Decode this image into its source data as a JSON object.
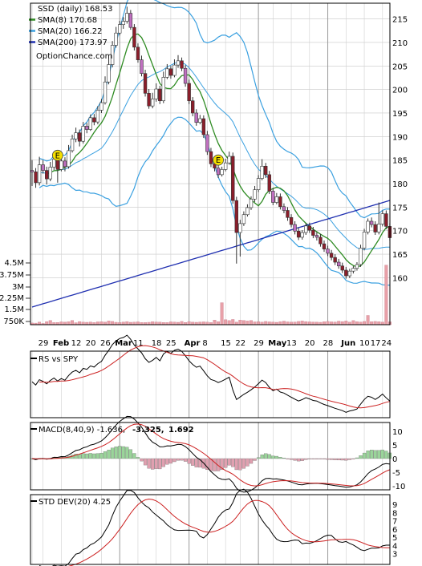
{
  "chart_data": [
    {
      "type": "candlestick",
      "panel": "price",
      "legend": [
        {
          "label": "SSD (daily) 168.53",
          "color": "#000000"
        },
        {
          "label": "SMA(8) 170.68",
          "color": "#2e8b22"
        },
        {
          "label": "SMA(20) 166.22",
          "color": "#3aa0e0"
        },
        {
          "label": "SMA(200) 173.97",
          "color": "#1f2fb0"
        }
      ],
      "source": "OptionChance.com",
      "x_ticks": [
        "29",
        "Feb",
        "12",
        "20",
        "26",
        "Mar",
        "11",
        "18",
        "25",
        "Apr",
        "8",
        "15",
        "22",
        "29",
        "May",
        "13",
        "20",
        "28",
        "Jun",
        "10",
        "17",
        "24"
      ],
      "y_ticks": [
        160,
        165,
        170,
        175,
        180,
        185,
        190,
        195,
        200,
        205,
        210,
        215
      ],
      "ylim": [
        157,
        218
      ],
      "close": [
        182.5,
        180.2,
        184.0,
        182.8,
        181.0,
        183.5,
        185.2,
        183.0,
        184.8,
        183.6,
        187.0,
        189.5,
        190.8,
        189.0,
        192.2,
        191.5,
        194.0,
        193.1,
        195.6,
        197.2,
        201.6,
        205.3,
        209.4,
        212.0,
        213.8,
        214.5,
        216.2,
        213.2,
        209.0,
        206.3,
        203.4,
        199.2,
        196.5,
        198.0,
        200.1,
        197.6,
        202.6,
        204.4,
        203.0,
        205.2,
        206.1,
        204.5,
        201.3,
        197.6,
        195.0,
        193.0,
        193.8,
        190.4,
        186.8,
        184.2,
        183.3,
        181.9,
        183.0,
        184.4,
        185.8,
        176.4,
        169.6,
        171.5,
        173.4,
        174.9,
        176.7,
        178.7,
        181.1,
        183.7,
        181.9,
        178.4,
        176.0,
        177.2,
        175.1,
        174.3,
        172.8,
        171.3,
        169.9,
        168.6,
        169.6,
        171.0,
        170.1,
        169.0,
        168.6,
        167.2,
        166.1,
        165.2,
        164.3,
        163.3,
        162.5,
        161.6,
        160.4,
        161.4,
        162.0,
        162.8,
        166.3,
        169.7,
        172.0,
        171.3,
        169.7,
        171.4,
        173.6,
        170.9,
        168.5
      ],
      "ohlc_bars": [
        {
          "x": 0,
          "o": 182.8,
          "h": 185.0,
          "l": 179.5,
          "c": 182.5
        },
        {
          "x": 1,
          "o": 182.5,
          "h": 183.3,
          "l": 179.1,
          "c": 180.2
        },
        {
          "x": 2,
          "o": 180.2,
          "h": 185.7,
          "l": 179.6,
          "c": 184.0
        },
        {
          "x": 3,
          "o": 184.0,
          "h": 185.0,
          "l": 182.1,
          "c": 182.8
        },
        {
          "x": 4,
          "o": 182.8,
          "h": 183.6,
          "l": 179.8,
          "c": 181.0
        },
        {
          "x": 5,
          "o": 181.0,
          "h": 184.6,
          "l": 180.5,
          "c": 183.5
        },
        {
          "x": 6,
          "o": 183.5,
          "h": 186.3,
          "l": 182.9,
          "c": 185.2
        },
        {
          "x": 7,
          "o": 185.2,
          "h": 186.1,
          "l": 180.2,
          "c": 183.0
        },
        {
          "x": 8,
          "o": 183.0,
          "h": 185.8,
          "l": 182.6,
          "c": 184.8
        },
        {
          "x": 9,
          "o": 184.8,
          "h": 185.6,
          "l": 182.6,
          "c": 183.6
        },
        {
          "x": 10,
          "o": 183.6,
          "h": 188.2,
          "l": 183.2,
          "c": 187.0
        },
        {
          "x": 11,
          "o": 187.0,
          "h": 190.4,
          "l": 186.6,
          "c": 189.5
        },
        {
          "x": 12,
          "o": 189.5,
          "h": 191.9,
          "l": 188.8,
          "c": 190.8
        },
        {
          "x": 13,
          "o": 190.8,
          "h": 191.5,
          "l": 187.9,
          "c": 189.0
        },
        {
          "x": 14,
          "o": 189.0,
          "h": 193.1,
          "l": 188.5,
          "c": 192.2
        },
        {
          "x": 15,
          "o": 192.2,
          "h": 192.9,
          "l": 190.7,
          "c": 191.5
        },
        {
          "x": 16,
          "o": 191.5,
          "h": 194.7,
          "l": 191.2,
          "c": 194.0
        },
        {
          "x": 17,
          "o": 194.0,
          "h": 194.8,
          "l": 192.4,
          "c": 193.1
        },
        {
          "x": 18,
          "o": 193.1,
          "h": 196.5,
          "l": 192.6,
          "c": 195.6
        },
        {
          "x": 19,
          "o": 195.6,
          "h": 198.0,
          "l": 195.0,
          "c": 197.2
        },
        {
          "x": 20,
          "o": 197.2,
          "h": 202.8,
          "l": 196.8,
          "c": 201.6
        },
        {
          "x": 21,
          "o": 201.6,
          "h": 206.6,
          "l": 201.1,
          "c": 205.3
        },
        {
          "x": 22,
          "o": 205.3,
          "h": 210.3,
          "l": 204.7,
          "c": 209.4
        },
        {
          "x": 23,
          "o": 209.4,
          "h": 213.3,
          "l": 208.9,
          "c": 212.0
        },
        {
          "x": 24,
          "o": 212.0,
          "h": 214.6,
          "l": 211.5,
          "c": 213.8
        },
        {
          "x": 25,
          "o": 213.8,
          "h": 215.4,
          "l": 212.9,
          "c": 214.5
        },
        {
          "x": 26,
          "o": 214.5,
          "h": 217.6,
          "l": 214.0,
          "c": 216.2
        },
        {
          "x": 27,
          "o": 216.2,
          "h": 216.9,
          "l": 212.7,
          "c": 213.2
        },
        {
          "x": 28,
          "o": 213.2,
          "h": 213.9,
          "l": 208.3,
          "c": 209.0
        },
        {
          "x": 29,
          "o": 209.0,
          "h": 209.8,
          "l": 205.7,
          "c": 206.3
        },
        {
          "x": 30,
          "o": 206.3,
          "h": 207.2,
          "l": 202.8,
          "c": 203.4
        },
        {
          "x": 31,
          "o": 203.4,
          "h": 204.2,
          "l": 198.5,
          "c": 199.2
        },
        {
          "x": 32,
          "o": 199.2,
          "h": 200.1,
          "l": 195.9,
          "c": 196.5
        },
        {
          "x": 33,
          "o": 196.5,
          "h": 199.3,
          "l": 196.0,
          "c": 198.0
        },
        {
          "x": 34,
          "o": 198.0,
          "h": 201.3,
          "l": 197.4,
          "c": 200.1
        },
        {
          "x": 35,
          "o": 200.1,
          "h": 200.8,
          "l": 196.9,
          "c": 197.6
        },
        {
          "x": 36,
          "o": 197.6,
          "h": 203.8,
          "l": 197.1,
          "c": 202.6
        },
        {
          "x": 37,
          "o": 202.6,
          "h": 205.4,
          "l": 202.2,
          "c": 204.4
        },
        {
          "x": 38,
          "o": 204.4,
          "h": 205.0,
          "l": 202.3,
          "c": 203.0
        },
        {
          "x": 39,
          "o": 203.0,
          "h": 206.4,
          "l": 202.6,
          "c": 205.2
        },
        {
          "x": 40,
          "o": 205.2,
          "h": 207.3,
          "l": 204.6,
          "c": 206.1
        },
        {
          "x": 41,
          "o": 206.1,
          "h": 206.8,
          "l": 203.9,
          "c": 204.5
        },
        {
          "x": 42,
          "o": 204.5,
          "h": 205.2,
          "l": 200.6,
          "c": 201.3
        },
        {
          "x": 43,
          "o": 201.3,
          "h": 202.1,
          "l": 196.9,
          "c": 197.6
        },
        {
          "x": 44,
          "o": 197.6,
          "h": 198.4,
          "l": 194.3,
          "c": 195.0
        },
        {
          "x": 45,
          "o": 195.0,
          "h": 195.8,
          "l": 192.3,
          "c": 193.0
        },
        {
          "x": 46,
          "o": 193.0,
          "h": 194.6,
          "l": 192.6,
          "c": 193.8
        },
        {
          "x": 47,
          "o": 193.8,
          "h": 194.5,
          "l": 189.7,
          "c": 190.4
        },
        {
          "x": 48,
          "o": 190.4,
          "h": 191.2,
          "l": 186.1,
          "c": 186.8
        },
        {
          "x": 49,
          "o": 186.8,
          "h": 187.6,
          "l": 183.5,
          "c": 184.2
        },
        {
          "x": 50,
          "o": 184.2,
          "h": 185.0,
          "l": 182.6,
          "c": 183.3
        },
        {
          "x": 51,
          "o": 183.3,
          "h": 184.1,
          "l": 181.2,
          "c": 181.9
        },
        {
          "x": 52,
          "o": 181.9,
          "h": 183.6,
          "l": 181.5,
          "c": 183.0
        },
        {
          "x": 53,
          "o": 183.0,
          "h": 185.3,
          "l": 182.6,
          "c": 184.4
        },
        {
          "x": 54,
          "o": 184.4,
          "h": 186.8,
          "l": 184.0,
          "c": 185.8
        },
        {
          "x": 55,
          "o": 185.8,
          "h": 186.6,
          "l": 175.7,
          "c": 176.4
        },
        {
          "x": 56,
          "o": 176.4,
          "h": 177.2,
          "l": 163.0,
          "c": 169.6
        },
        {
          "x": 57,
          "o": 169.6,
          "h": 172.3,
          "l": 164.5,
          "c": 171.5
        },
        {
          "x": 58,
          "o": 171.5,
          "h": 174.1,
          "l": 171.0,
          "c": 173.4
        },
        {
          "x": 59,
          "o": 173.4,
          "h": 175.6,
          "l": 173.0,
          "c": 174.9
        },
        {
          "x": 60,
          "o": 174.9,
          "h": 177.3,
          "l": 174.4,
          "c": 176.7
        },
        {
          "x": 61,
          "o": 176.7,
          "h": 179.5,
          "l": 176.1,
          "c": 178.7
        },
        {
          "x": 62,
          "o": 178.7,
          "h": 181.8,
          "l": 178.2,
          "c": 181.1
        },
        {
          "x": 63,
          "o": 181.1,
          "h": 185.2,
          "l": 180.7,
          "c": 183.7
        },
        {
          "x": 64,
          "o": 183.7,
          "h": 184.4,
          "l": 181.2,
          "c": 181.9
        },
        {
          "x": 65,
          "o": 181.9,
          "h": 182.7,
          "l": 177.8,
          "c": 178.4
        },
        {
          "x": 66,
          "o": 178.4,
          "h": 179.1,
          "l": 175.4,
          "c": 176.0
        },
        {
          "x": 67,
          "o": 176.0,
          "h": 178.0,
          "l": 175.6,
          "c": 177.2
        },
        {
          "x": 68,
          "o": 177.2,
          "h": 177.9,
          "l": 174.5,
          "c": 175.1
        },
        {
          "x": 69,
          "o": 175.1,
          "h": 175.8,
          "l": 173.7,
          "c": 174.3
        },
        {
          "x": 70,
          "o": 174.3,
          "h": 175.0,
          "l": 172.1,
          "c": 172.8
        },
        {
          "x": 71,
          "o": 172.8,
          "h": 173.5,
          "l": 170.7,
          "c": 171.3
        },
        {
          "x": 72,
          "o": 171.3,
          "h": 172.0,
          "l": 169.2,
          "c": 169.9
        },
        {
          "x": 73,
          "o": 169.9,
          "h": 170.6,
          "l": 168.0,
          "c": 168.6
        },
        {
          "x": 74,
          "o": 168.6,
          "h": 170.1,
          "l": 168.1,
          "c": 169.6
        },
        {
          "x": 75,
          "o": 169.6,
          "h": 171.6,
          "l": 169.1,
          "c": 171.0
        },
        {
          "x": 76,
          "o": 171.0,
          "h": 171.7,
          "l": 169.5,
          "c": 170.1
        },
        {
          "x": 77,
          "o": 170.1,
          "h": 170.8,
          "l": 168.4,
          "c": 169.0
        },
        {
          "x": 78,
          "o": 169.0,
          "h": 169.7,
          "l": 167.9,
          "c": 168.6
        },
        {
          "x": 79,
          "o": 168.6,
          "h": 169.3,
          "l": 166.6,
          "c": 167.2
        },
        {
          "x": 80,
          "o": 167.2,
          "h": 167.9,
          "l": 165.5,
          "c": 166.1
        },
        {
          "x": 81,
          "o": 166.1,
          "h": 166.8,
          "l": 164.6,
          "c": 165.2
        },
        {
          "x": 82,
          "o": 165.2,
          "h": 165.9,
          "l": 163.7,
          "c": 164.3
        },
        {
          "x": 83,
          "o": 164.3,
          "h": 165.0,
          "l": 162.7,
          "c": 163.3
        },
        {
          "x": 84,
          "o": 163.3,
          "h": 164.0,
          "l": 161.9,
          "c": 162.5
        },
        {
          "x": 85,
          "o": 162.5,
          "h": 163.2,
          "l": 161.0,
          "c": 161.6
        },
        {
          "x": 86,
          "o": 161.6,
          "h": 162.3,
          "l": 159.8,
          "c": 160.4
        },
        {
          "x": 87,
          "o": 160.4,
          "h": 161.9,
          "l": 159.9,
          "c": 161.4
        },
        {
          "x": 88,
          "o": 161.4,
          "h": 162.5,
          "l": 160.9,
          "c": 162.0
        },
        {
          "x": 89,
          "o": 162.0,
          "h": 163.3,
          "l": 161.5,
          "c": 162.8
        },
        {
          "x": 90,
          "o": 162.8,
          "h": 167.0,
          "l": 162.3,
          "c": 166.3
        },
        {
          "x": 91,
          "o": 166.3,
          "h": 170.4,
          "l": 165.8,
          "c": 169.7
        },
        {
          "x": 92,
          "o": 169.7,
          "h": 172.6,
          "l": 169.2,
          "c": 172.0
        },
        {
          "x": 93,
          "o": 172.0,
          "h": 172.8,
          "l": 170.7,
          "c": 171.3
        },
        {
          "x": 94,
          "o": 171.3,
          "h": 172.0,
          "l": 169.1,
          "c": 169.7
        },
        {
          "x": 95,
          "o": 169.7,
          "h": 176.0,
          "l": 169.2,
          "c": 171.4
        },
        {
          "x": 96,
          "o": 171.4,
          "h": 174.3,
          "l": 170.9,
          "c": 173.6
        },
        {
          "x": 97,
          "o": 173.6,
          "h": 174.3,
          "l": 170.3,
          "c": 170.9
        },
        {
          "x": 98,
          "o": 170.9,
          "h": 171.6,
          "l": 167.9,
          "c": 168.5
        }
      ],
      "events": [
        {
          "label": "E",
          "x": 7,
          "y": 186
        },
        {
          "label": "E",
          "x": 51,
          "y": 185
        }
      ]
    },
    {
      "type": "bar",
      "panel": "volume",
      "y_ticks": [
        "4.5M",
        "3.75M",
        "3M",
        "2.25M",
        "1.5M",
        "750K"
      ],
      "ylim": [
        0,
        4800000
      ],
      "values_thousands": [
        120,
        110,
        180,
        90,
        220,
        300,
        150,
        160,
        200,
        180,
        210,
        300,
        140,
        220,
        180,
        170,
        190,
        150,
        200,
        210,
        180,
        260,
        230,
        170,
        150,
        190,
        220,
        170,
        180,
        200,
        160,
        150,
        170,
        210,
        190,
        180,
        160,
        150,
        200,
        190,
        170,
        230,
        160,
        210,
        180,
        170,
        190,
        200,
        180,
        150,
        320,
        210,
        1550,
        350,
        290,
        370,
        180,
        320,
        300,
        260,
        300,
        200,
        210,
        180,
        230,
        200,
        190,
        170,
        210,
        250,
        200,
        180,
        190,
        230,
        260,
        220,
        200,
        190,
        180,
        170,
        210,
        230,
        200,
        190,
        250,
        220,
        260,
        180,
        290,
        210,
        190,
        230,
        650,
        210,
        230,
        210,
        180,
        4200,
        200
      ]
    },
    {
      "type": "line",
      "panel": "rs",
      "title": "RS vs SPY"
    },
    {
      "type": "bar",
      "panel": "macd",
      "title": "MACD(8,40,9) -1.636,",
      "values_labels": [
        "-3.325,",
        "1.692"
      ],
      "y_ticks": [
        10,
        5,
        0,
        -5,
        -10
      ],
      "ylim": [
        -12,
        12
      ]
    },
    {
      "type": "line",
      "panel": "std",
      "title": "STD DEV(20) 4.25",
      "y_ticks": [
        9,
        8,
        7,
        6,
        5,
        4,
        3
      ],
      "ylim": [
        1.8,
        9.6
      ]
    }
  ],
  "colors": {
    "candle_up": "#ffffff",
    "candle_down_dark": "#8b1e2b",
    "candle_down_light": "#c070c0",
    "sma8": "#2e8b22",
    "sma20": "#3aa0e0",
    "sma200": "#1f2fb0",
    "signal": "#cc2020",
    "vol_bar": "#e8a0a8",
    "event_marker": "#f5e000"
  }
}
